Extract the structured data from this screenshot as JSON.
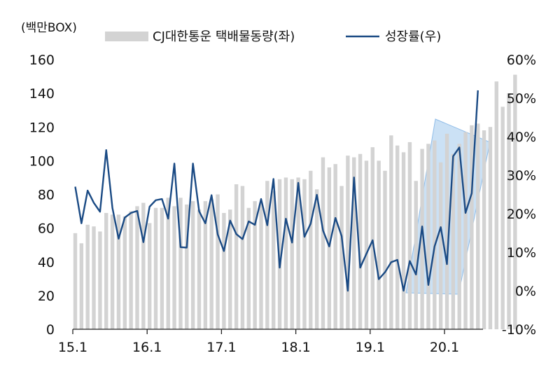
{
  "chart_data": {
    "type": "bar",
    "unit_label": "(백만BOX)",
    "x_tick_labels": [
      "15.1",
      "16.1",
      "17.1",
      "18.1",
      "19.1",
      "20.1"
    ],
    "y_left": {
      "ylim": [
        0,
        160
      ],
      "ticks": [
        "0",
        "20",
        "40",
        "60",
        "80",
        "100",
        "120",
        "140",
        "160"
      ]
    },
    "y_right": {
      "ylim": [
        -10,
        60
      ],
      "ticks": [
        "-10%",
        "0%",
        "10%",
        "20%",
        "30%",
        "40%",
        "50%",
        "60%"
      ]
    },
    "grid": false,
    "legend_position": "top",
    "highlight": "shaded parallelogram over Jul 2019 – Jul 2020 growth",
    "series": [
      {
        "name": "CJ대한통운 택배물동량(좌)",
        "type": "bar",
        "axis": "left",
        "color": "#d3d3d3",
        "values": [
          57,
          51,
          62,
          61,
          58,
          69,
          68,
          68,
          67,
          70,
          73,
          75,
          63,
          72,
          72,
          78,
          73,
          78,
          74,
          76,
          71,
          76,
          77,
          80,
          69,
          71,
          86,
          85,
          72,
          76,
          75,
          88,
          82,
          89,
          90,
          89,
          90,
          89,
          94,
          83,
          102,
          96,
          98,
          85,
          103,
          102,
          104,
          100,
          108,
          100,
          94,
          115,
          109,
          105,
          111,
          88,
          107,
          110,
          112,
          99,
          116,
          104,
          110,
          117,
          121,
          122,
          118,
          120,
          147,
          132,
          140,
          151
        ]
      },
      {
        "name": "성장률(우)",
        "type": "line",
        "axis": "right",
        "color": "#1a4a84",
        "values": [
          27,
          17.5,
          26,
          22.8,
          20.5,
          36.5,
          21.5,
          13.5,
          19,
          20.2,
          20.7,
          12.6,
          21.8,
          23.5,
          23.8,
          18.7,
          33,
          11.3,
          11.2,
          33,
          20.6,
          17.5,
          24.8,
          14.6,
          10.3,
          18.2,
          14.7,
          13.4,
          18,
          17.1,
          23.8,
          17,
          29,
          6,
          18.7,
          12.5,
          28,
          14,
          17.4,
          24.9,
          15.6,
          11.5,
          18.9,
          14.2,
          0,
          29.4,
          6,
          9.6,
          13.1,
          3,
          4.8,
          7.4,
          8,
          0,
          7.7,
          4.2,
          16.7,
          1.5,
          11.5,
          16.5,
          6.9,
          34.9,
          37.2,
          20.2,
          25.3,
          52
        ]
      }
    ]
  }
}
